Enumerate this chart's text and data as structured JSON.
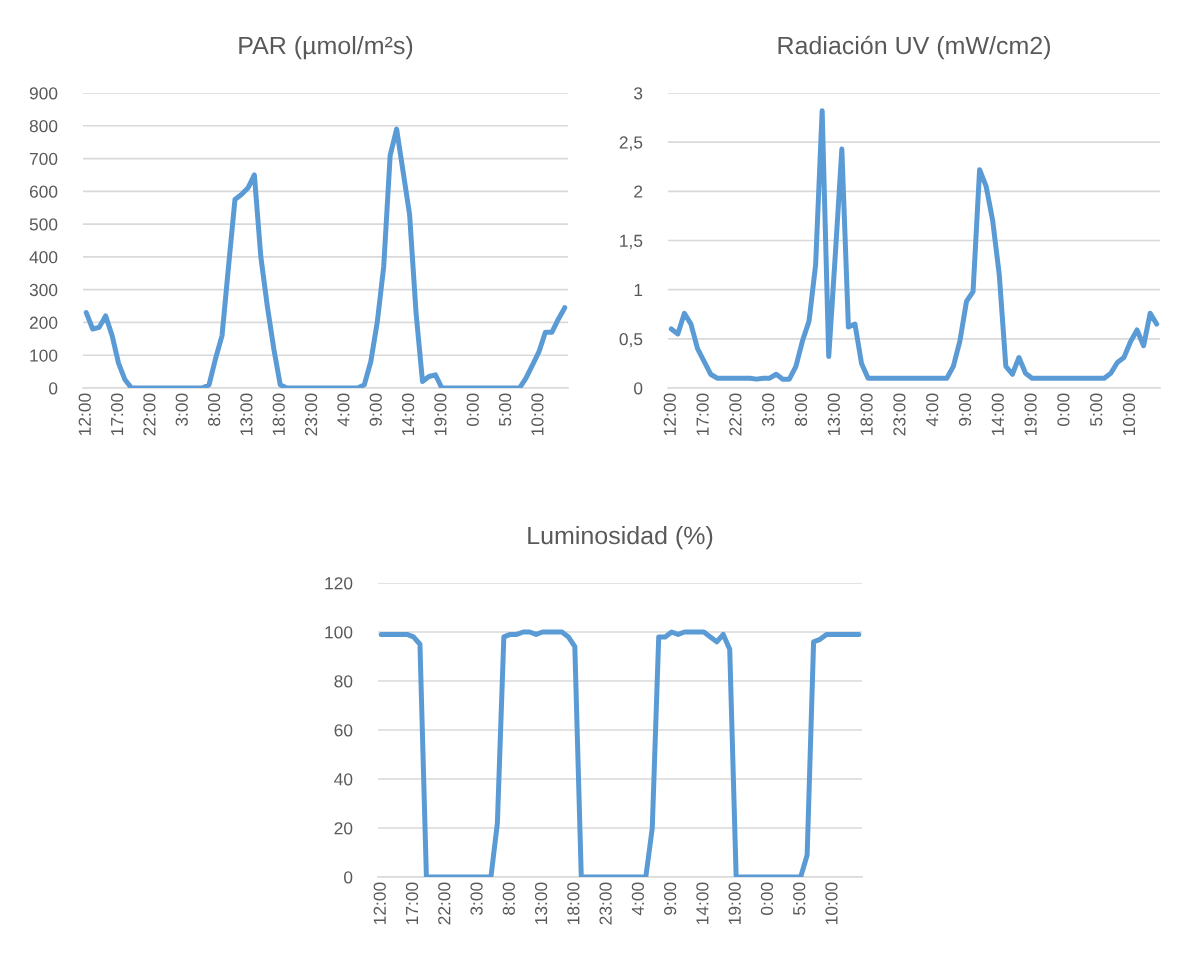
{
  "chart_data": [
    {
      "type": "line",
      "title": "PAR (µmol/m²s)",
      "grid": "y",
      "ylim": [
        0,
        900
      ],
      "yticks": [
        0,
        100,
        200,
        300,
        400,
        500,
        600,
        700,
        800,
        900
      ],
      "categories": [
        "12:00",
        null,
        null,
        null,
        null,
        "17:00",
        null,
        null,
        null,
        null,
        "22:00",
        null,
        null,
        null,
        null,
        "3:00",
        null,
        null,
        null,
        null,
        "8:00",
        null,
        null,
        null,
        null,
        "13:00",
        null,
        null,
        null,
        null,
        "18:00",
        null,
        null,
        null,
        null,
        "23:00",
        null,
        null,
        null,
        null,
        "4:00",
        null,
        null,
        null,
        null,
        "9:00",
        null,
        null,
        null,
        null,
        "14:00",
        null,
        null,
        null,
        null,
        "19:00",
        null,
        null,
        null,
        null,
        "0:00",
        null,
        null,
        null,
        null,
        "5:00",
        null,
        null,
        null,
        null,
        "10:00",
        null,
        null,
        null,
        null
      ],
      "series": [
        {
          "color": "#5b9bd5",
          "values": [
            230,
            180,
            185,
            220,
            160,
            75,
            25,
            0,
            0,
            0,
            0,
            0,
            0,
            0,
            0,
            0,
            0,
            0,
            0,
            10,
            90,
            160,
            370,
            575,
            590,
            610,
            650,
            400,
            250,
            120,
            10,
            0,
            0,
            0,
            0,
            0,
            0,
            0,
            0,
            0,
            0,
            0,
            0,
            10,
            80,
            200,
            370,
            710,
            790,
            660,
            530,
            230,
            20,
            35,
            40,
            0,
            0,
            0,
            0,
            0,
            0,
            0,
            0,
            0,
            0,
            0,
            0,
            0,
            30,
            70,
            110,
            170,
            170,
            210,
            245
          ]
        }
      ]
    },
    {
      "type": "line",
      "title": "Radiación UV (mW/cm2)",
      "grid": "y",
      "ylim": [
        0,
        3
      ],
      "yticks": [
        0,
        {
          "value": 0.5,
          "label": "0,5"
        },
        1,
        {
          "value": 1.5,
          "label": "1,5"
        },
        2,
        {
          "value": 2.5,
          "label": "2,5"
        },
        3
      ],
      "categories": [
        "12:00",
        null,
        null,
        null,
        null,
        "17:00",
        null,
        null,
        null,
        null,
        "22:00",
        null,
        null,
        null,
        null,
        "3:00",
        null,
        null,
        null,
        null,
        "8:00",
        null,
        null,
        null,
        null,
        "13:00",
        null,
        null,
        null,
        null,
        "18:00",
        null,
        null,
        null,
        null,
        "23:00",
        null,
        null,
        null,
        null,
        "4:00",
        null,
        null,
        null,
        null,
        "9:00",
        null,
        null,
        null,
        null,
        "14:00",
        null,
        null,
        null,
        null,
        "19:00",
        null,
        null,
        null,
        null,
        "0:00",
        null,
        null,
        null,
        null,
        "5:00",
        null,
        null,
        null,
        null,
        "10:00",
        null,
        null,
        null,
        null
      ],
      "series": [
        {
          "color": "#5b9bd5",
          "values": [
            0.6,
            0.55,
            0.76,
            0.65,
            0.4,
            0.27,
            0.14,
            0.1,
            0.1,
            0.1,
            0.1,
            0.1,
            0.1,
            0.09,
            0.1,
            0.1,
            0.14,
            0.09,
            0.09,
            0.22,
            0.48,
            0.68,
            1.25,
            2.82,
            0.32,
            1.35,
            2.43,
            0.62,
            0.65,
            0.25,
            0.1,
            0.1,
            0.1,
            0.1,
            0.1,
            0.1,
            0.1,
            0.1,
            0.1,
            0.1,
            0.1,
            0.1,
            0.1,
            0.22,
            0.48,
            0.88,
            0.98,
            2.22,
            2.05,
            1.7,
            1.15,
            0.22,
            0.14,
            0.31,
            0.15,
            0.1,
            0.1,
            0.1,
            0.1,
            0.1,
            0.1,
            0.1,
            0.1,
            0.1,
            0.1,
            0.1,
            0.1,
            0.15,
            0.26,
            0.31,
            0.47,
            0.59,
            0.43,
            0.76,
            0.65
          ]
        }
      ]
    },
    {
      "type": "line",
      "title": "Luminosidad (%)",
      "grid": "y",
      "ylim": [
        0,
        120
      ],
      "yticks": [
        0,
        20,
        40,
        60,
        80,
        100,
        120
      ],
      "categories": [
        "12:00",
        null,
        null,
        null,
        null,
        "17:00",
        null,
        null,
        null,
        null,
        "22:00",
        null,
        null,
        null,
        null,
        "3:00",
        null,
        null,
        null,
        null,
        "8:00",
        null,
        null,
        null,
        null,
        "13:00",
        null,
        null,
        null,
        null,
        "18:00",
        null,
        null,
        null,
        null,
        "23:00",
        null,
        null,
        null,
        null,
        "4:00",
        null,
        null,
        null,
        null,
        "9:00",
        null,
        null,
        null,
        null,
        "14:00",
        null,
        null,
        null,
        null,
        "19:00",
        null,
        null,
        null,
        null,
        "0:00",
        null,
        null,
        null,
        null,
        "5:00",
        null,
        null,
        null,
        null,
        "10:00",
        null,
        null,
        null,
        null
      ],
      "series": [
        {
          "color": "#5b9bd5",
          "values": [
            99,
            99,
            99,
            99,
            99,
            98,
            95,
            0,
            0,
            0,
            0,
            0,
            0,
            0,
            0,
            0,
            0,
            0,
            22,
            98,
            99,
            99,
            100,
            100,
            99,
            100,
            100,
            100,
            100,
            98,
            94,
            0,
            0,
            0,
            0,
            0,
            0,
            0,
            0,
            0,
            0,
            0,
            20,
            98,
            98,
            100,
            99,
            100,
            100,
            100,
            100,
            98,
            96,
            99,
            93,
            0,
            0,
            0,
            0,
            0,
            0,
            0,
            0,
            0,
            0,
            0,
            9,
            96,
            97,
            99,
            99,
            99,
            99,
            99,
            99
          ]
        }
      ]
    }
  ]
}
